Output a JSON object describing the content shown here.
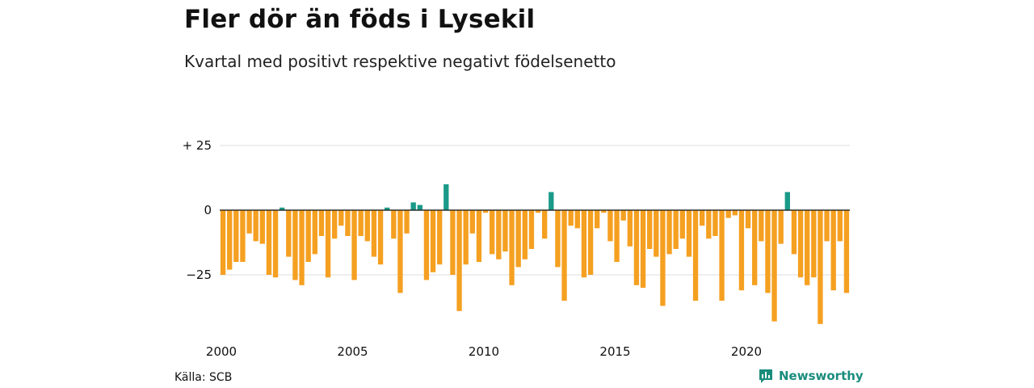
{
  "header": {
    "title": "Fler dör än föds i Lysekil",
    "subtitle": "Kvartal med positivt respektive negativt födelsenetto"
  },
  "footer": {
    "source": "Källa: SCB",
    "brand": "Newsworthy",
    "brand_icon": "bar-chart-logo-icon"
  },
  "colors": {
    "positive": "#1a9a88",
    "negative": "#f5a021",
    "brand": "#1a8c7d"
  },
  "chart_data": {
    "type": "bar",
    "ylim": [
      -45,
      30
    ],
    "y_ticks": [
      {
        "value": 25,
        "label": "+ 25"
      },
      {
        "value": 0,
        "label": "0"
      },
      {
        "value": -25,
        "label": "−25"
      }
    ],
    "x_ticks": [
      {
        "value": 2000,
        "label": "2000"
      },
      {
        "value": 2005,
        "label": "2005"
      },
      {
        "value": 2010,
        "label": "2010"
      },
      {
        "value": 2015,
        "label": "2015"
      },
      {
        "value": 2020,
        "label": "2020"
      }
    ],
    "x_start_year": 2000,
    "periods_per_year": 4,
    "values": [
      -25,
      -23,
      -20,
      -20,
      -9,
      -12,
      -13,
      -25,
      -26,
      1,
      -18,
      -27,
      -29,
      -20,
      -17,
      -10,
      -26,
      -11,
      -6,
      -10,
      -27,
      -10,
      -12,
      -18,
      -21,
      1,
      -11,
      -32,
      -9,
      3,
      2,
      -27,
      -24,
      -21,
      10,
      -25,
      -39,
      -21,
      -9,
      -20,
      -1,
      -17,
      -19,
      -16,
      -29,
      -22,
      -19,
      -15,
      -1,
      -11,
      7,
      -22,
      -35,
      -6,
      -7,
      -26,
      -25,
      -7,
      -1,
      -12,
      -20,
      -4,
      -14,
      -29,
      -30,
      -15,
      -18,
      -37,
      -17,
      -15,
      -11,
      -18,
      -35,
      -6,
      -11,
      -10,
      -35,
      -3,
      -2,
      -31,
      -7,
      -29,
      -12,
      -32,
      -43,
      -13,
      7,
      -17,
      -26,
      -29,
      -26,
      -44,
      -12,
      -31,
      -12,
      -32
    ]
  }
}
